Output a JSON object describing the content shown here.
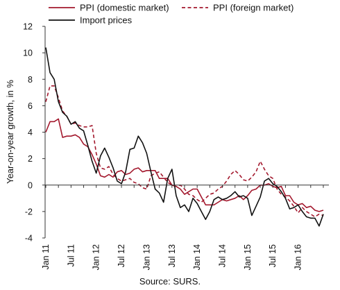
{
  "chart_data": {
    "type": "line",
    "ylabel": "Year-on-year growth, in %",
    "xlabel": "",
    "ylim": [
      -4,
      12
    ],
    "yticks": [
      -4,
      -2,
      0,
      2,
      4,
      6,
      8,
      10,
      12
    ],
    "x_tick_labels": [
      {
        "label": "Jan 11",
        "month": 0
      },
      {
        "label": "Jul 11",
        "month": 6
      },
      {
        "label": "Jan 12",
        "month": 12
      },
      {
        "label": "Jul 12",
        "month": 18
      },
      {
        "label": "Jan 13",
        "month": 24
      },
      {
        "label": "Jul 13",
        "month": 30
      },
      {
        "label": "Jan 14",
        "month": 36
      },
      {
        "label": "Jul 14",
        "month": 42
      },
      {
        "label": "Jan 15",
        "month": 48
      },
      {
        "label": "Jul 15",
        "month": 54
      },
      {
        "label": "Jan 16",
        "month": 60
      }
    ],
    "x_start": "Jan 2011",
    "grid": false,
    "legend_position": "top",
    "source": "Source: SURS.",
    "series": [
      {
        "name": "PPI (domestic market)",
        "color": "#a3182d",
        "dash": "solid",
        "values": [
          4.0,
          4.8,
          4.8,
          5.0,
          3.6,
          3.7,
          3.7,
          3.8,
          3.6,
          3.1,
          2.9,
          2.3,
          1.6,
          0.7,
          0.6,
          0.8,
          0.6,
          1.0,
          1.1,
          0.8,
          0.9,
          1.2,
          1.3,
          1.0,
          1.1,
          1.1,
          1.1,
          0.5,
          0.5,
          0.5,
          0.0,
          -0.1,
          -0.3,
          -0.7,
          -0.5,
          -0.3,
          -0.3,
          -0.9,
          -1.5,
          -1.5,
          -1.5,
          -1.3,
          -1.1,
          -1.2,
          -1.1,
          -1.0,
          -0.8,
          -1.1,
          -0.8,
          -0.4,
          -0.3,
          0.0,
          0.0,
          0.1,
          -0.1,
          -0.2,
          -0.1,
          -0.8,
          -0.8,
          -1.3,
          -1.5,
          -1.4,
          -1.7,
          -1.6,
          -1.9,
          -2.0,
          -1.9
        ]
      },
      {
        "name": "PPI (foreign market)",
        "color": "#a3182d",
        "dash": "dashed",
        "values": [
          6.3,
          7.5,
          7.5,
          6.6,
          5.6,
          5.2,
          4.6,
          4.7,
          4.5,
          4.4,
          4.4,
          4.5,
          2.4,
          1.3,
          1.2,
          1.4,
          0.8,
          0.5,
          0.3,
          0.4,
          0.5,
          0.2,
          0.1,
          -0.2,
          -0.3,
          0.7,
          0.9,
          1.0,
          0.6,
          0.2,
          0.0,
          -0.1,
          0.0,
          -0.3,
          -0.7,
          -0.8,
          -1.1,
          -1.3,
          -1.0,
          -0.7,
          -0.6,
          -0.3,
          -0.1,
          0.3,
          0.8,
          1.1,
          0.8,
          0.4,
          0.3,
          0.6,
          1.0,
          1.8,
          1.2,
          0.7,
          0.5,
          -0.3,
          -0.7,
          -0.9,
          -1.2,
          -1.6,
          -2.1,
          -1.7,
          -2.0,
          -2.2,
          -2.4,
          -2.2,
          -2.3
        ]
      },
      {
        "name": "Import prices",
        "color": "#111111",
        "dash": "solid",
        "values": [
          10.4,
          8.5,
          8.0,
          6.3,
          5.5,
          5.2,
          4.6,
          4.8,
          4.3,
          4.1,
          3.0,
          1.8,
          0.9,
          2.2,
          2.8,
          2.1,
          1.3,
          0.3,
          0.1,
          1.0,
          2.7,
          2.8,
          3.7,
          3.2,
          2.4,
          1.0,
          -0.3,
          -0.6,
          -1.3,
          0.5,
          1.2,
          -0.8,
          -1.7,
          -1.5,
          -2.0,
          -1.0,
          -1.4,
          -2.0,
          -2.6,
          -2.0,
          -1.1,
          -0.9,
          -1.1,
          -1.0,
          -0.8,
          -0.5,
          -0.9,
          -0.8,
          -1.0,
          -2.3,
          -1.6,
          -0.9,
          0.3,
          0.5,
          0.1,
          -0.1,
          -0.5,
          -1.0,
          -1.8,
          -1.7,
          -1.5,
          -2.0,
          -2.4,
          -2.5,
          -2.5,
          -3.1,
          -2.2
        ]
      }
    ]
  }
}
